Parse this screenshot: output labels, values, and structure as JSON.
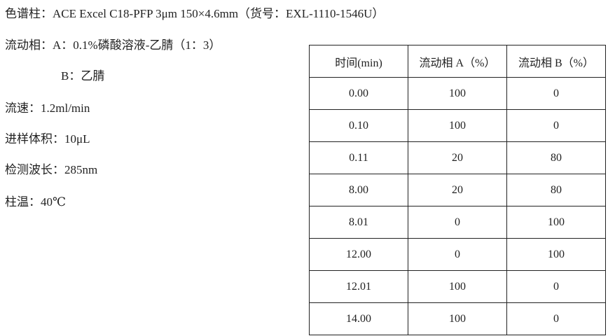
{
  "lines": [
    "色谱柱：ACE Excel C18-PFP 3μm 150×4.6mm（货号：EXL-1110-1546U）",
    "流动相：A：0.1%磷酸溶液-乙腈（1：3）",
    "B：乙腈",
    "流速：1.2ml/min",
    "进样体积：10μL",
    "检测波长：285nm",
    "柱温：40℃"
  ],
  "table": {
    "headers": [
      "时间(min)",
      "流动相 A（%）",
      "流动相 B（%）"
    ],
    "rows": [
      [
        "0.00",
        "100",
        "0"
      ],
      [
        "0.10",
        "100",
        "0"
      ],
      [
        "0.11",
        "20",
        "80"
      ],
      [
        "8.00",
        "20",
        "80"
      ],
      [
        "8.01",
        "0",
        "100"
      ],
      [
        "12.00",
        "0",
        "100"
      ],
      [
        "12.01",
        "100",
        "0"
      ],
      [
        "14.00",
        "100",
        "0"
      ]
    ]
  }
}
